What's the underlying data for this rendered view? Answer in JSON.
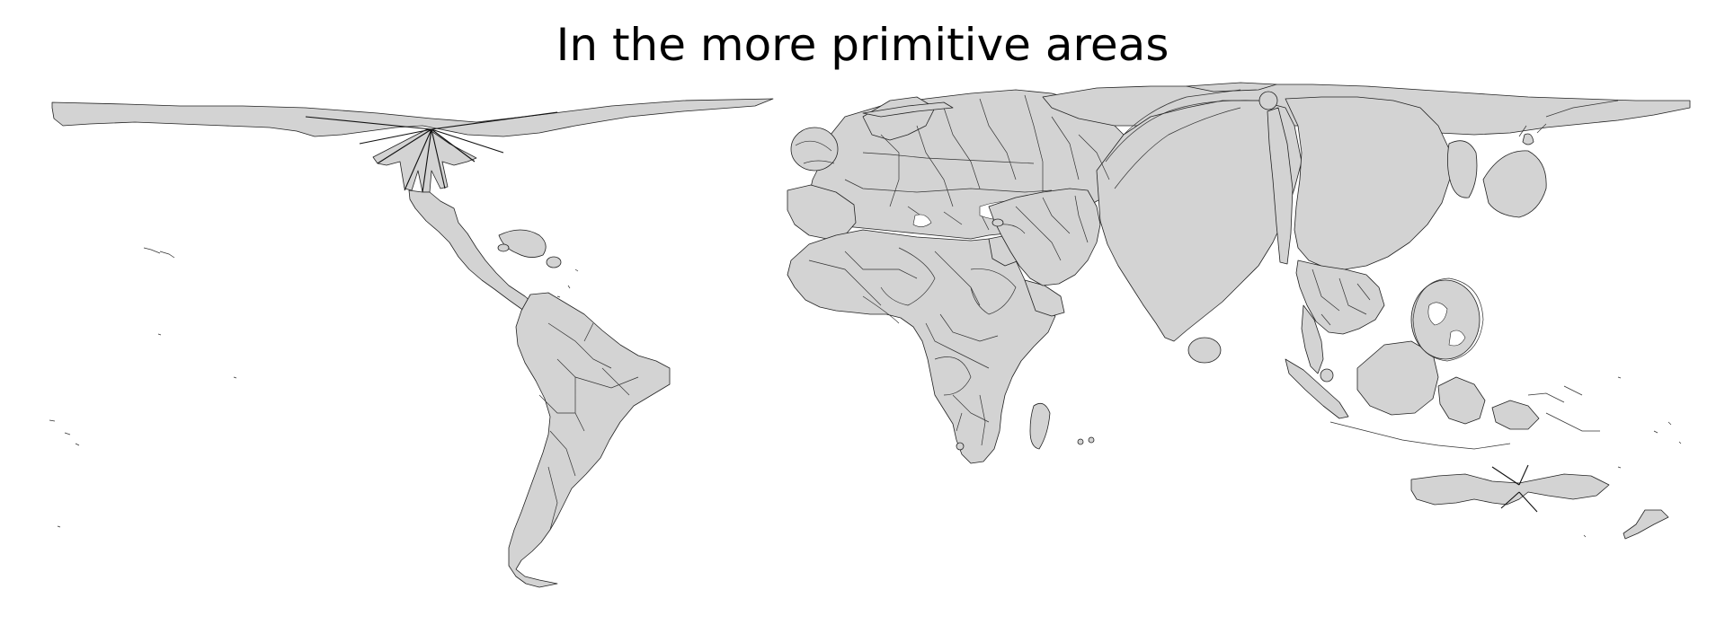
{
  "map": {
    "title": "In the more primitive areas",
    "type": "cartogram",
    "projection": "distorted world cartogram",
    "colors": {
      "land": "#d3d3d3",
      "border": "#222222",
      "background": "#ffffff"
    }
  }
}
